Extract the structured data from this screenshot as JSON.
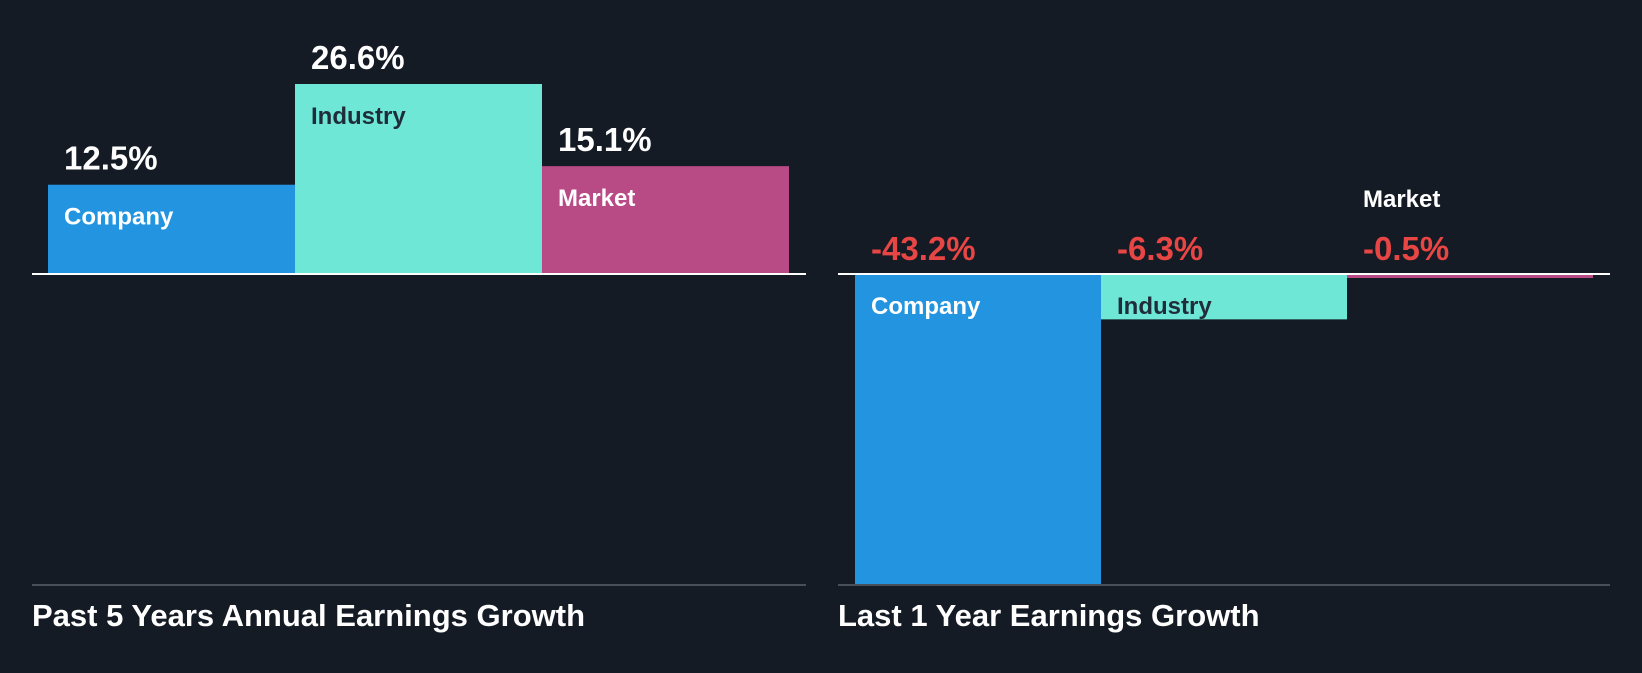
{
  "colors": {
    "background": "#151b24",
    "company": "#2394e0",
    "industry": "#6ee7d6",
    "market": "#b84a85",
    "positive_text": "#ffffff",
    "negative_text": "#e84545",
    "dark_label": "#1f2d3a",
    "baseline": "#ffffff",
    "axis_bottom": "#4a4f57"
  },
  "chart_data": [
    {
      "type": "bar",
      "title": "Past 5 Years Annual Earnings Growth",
      "categories": [
        "Company",
        "Industry",
        "Market"
      ],
      "values": [
        12.5,
        26.6,
        15.1
      ],
      "value_labels": [
        "12.5%",
        "26.6%",
        "15.1%"
      ],
      "unit": "%",
      "ylim": [
        -43.2,
        26.6
      ],
      "grid": false,
      "legend": "none"
    },
    {
      "type": "bar",
      "title": "Last 1 Year Earnings Growth",
      "categories": [
        "Company",
        "Industry",
        "Market"
      ],
      "values": [
        -43.2,
        -6.3,
        -0.5
      ],
      "value_labels": [
        "-43.2%",
        "-6.3%",
        "-0.5%"
      ],
      "unit": "%",
      "ylim": [
        -43.2,
        26.6
      ],
      "grid": false,
      "legend": "none"
    }
  ]
}
